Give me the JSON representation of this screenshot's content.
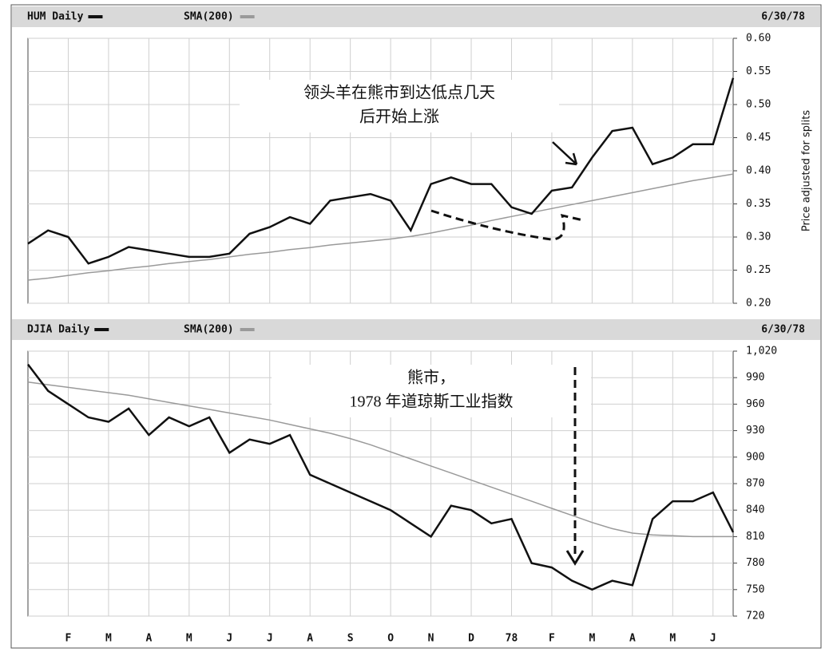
{
  "chart_data": [
    {
      "type": "line",
      "title": "HUM Daily",
      "date": "6/30/78",
      "ylabel": "Price adjusted for splits",
      "series": [
        {
          "name": "HUM Daily",
          "color": "#111111",
          "values": [
            0.29,
            0.31,
            0.3,
            0.26,
            0.27,
            0.285,
            0.28,
            0.275,
            0.27,
            0.27,
            0.275,
            0.305,
            0.315,
            0.33,
            0.32,
            0.355,
            0.36,
            0.365,
            0.355,
            0.31,
            0.38,
            0.39,
            0.38,
            0.38,
            0.345,
            0.335,
            0.37,
            0.375,
            0.42,
            0.46,
            0.465,
            0.41,
            0.42,
            0.44,
            0.44,
            0.54
          ]
        },
        {
          "name": "SMA(200)",
          "color": "#9a9a9a",
          "values": [
            0.235,
            0.238,
            0.242,
            0.246,
            0.249,
            0.253,
            0.256,
            0.26,
            0.263,
            0.266,
            0.27,
            0.274,
            0.277,
            0.281,
            0.284,
            0.288,
            0.291,
            0.294,
            0.297,
            0.301,
            0.306,
            0.312,
            0.318,
            0.325,
            0.331,
            0.337,
            0.343,
            0.349,
            0.355,
            0.361,
            0.367,
            0.373,
            0.379,
            0.385,
            0.39,
            0.395
          ]
        }
      ],
      "ylim": [
        0.2,
        0.6
      ],
      "yticks": [
        {
          "value": 0.2,
          "label": "0.20"
        },
        {
          "value": 0.25,
          "label": "0.25"
        },
        {
          "value": 0.3,
          "label": "0.30"
        },
        {
          "value": 0.35,
          "label": "0.35"
        },
        {
          "value": 0.4,
          "label": "0.40"
        },
        {
          "value": 0.45,
          "label": "0.45"
        },
        {
          "value": 0.5,
          "label": "0.50"
        },
        {
          "value": 0.55,
          "label": "0.55"
        },
        {
          "value": 0.6,
          "label": "0.60"
        }
      ],
      "grid": true,
      "annotation": [
        "领头羊在熊市到达低点几天",
        "后开始上涨"
      ]
    },
    {
      "type": "line",
      "title": "DJIA Daily",
      "date": "6/30/78",
      "categories": [
        null,
        null,
        "F",
        null,
        "M",
        null,
        "A",
        null,
        "M",
        null,
        "J",
        null,
        "J",
        null,
        "A",
        null,
        "S",
        null,
        "O",
        null,
        "N",
        null,
        "D",
        null,
        "78",
        null,
        "F",
        null,
        "M",
        null,
        "A",
        null,
        "M",
        null,
        "J",
        null
      ],
      "series": [
        {
          "name": "DJIA Daily",
          "color": "#111111",
          "values": [
            1005,
            975,
            960,
            945,
            940,
            955,
            925,
            945,
            935,
            945,
            905,
            920,
            915,
            925,
            880,
            870,
            860,
            850,
            840,
            825,
            810,
            845,
            840,
            825,
            830,
            780,
            775,
            760,
            750,
            760,
            755,
            830,
            850,
            850,
            860,
            815
          ]
        },
        {
          "name": "SMA(200)",
          "color": "#9a9a9a",
          "values": [
            985,
            982,
            979,
            976,
            973,
            970,
            966,
            962,
            958,
            954,
            950,
            946,
            942,
            937,
            932,
            927,
            921,
            914,
            906,
            898,
            890,
            882,
            874,
            866,
            858,
            850,
            842,
            834,
            826,
            819,
            814,
            812,
            811,
            810,
            810,
            810
          ]
        }
      ],
      "ylim": [
        720,
        1020
      ],
      "yticks": [
        720,
        750,
        780,
        810,
        840,
        870,
        900,
        930,
        960,
        990,
        {
          "value": 1020,
          "label": "1,020"
        }
      ],
      "grid": true,
      "annotation": [
        "熊市，",
        "1978 年道琼斯工业指数"
      ]
    }
  ]
}
